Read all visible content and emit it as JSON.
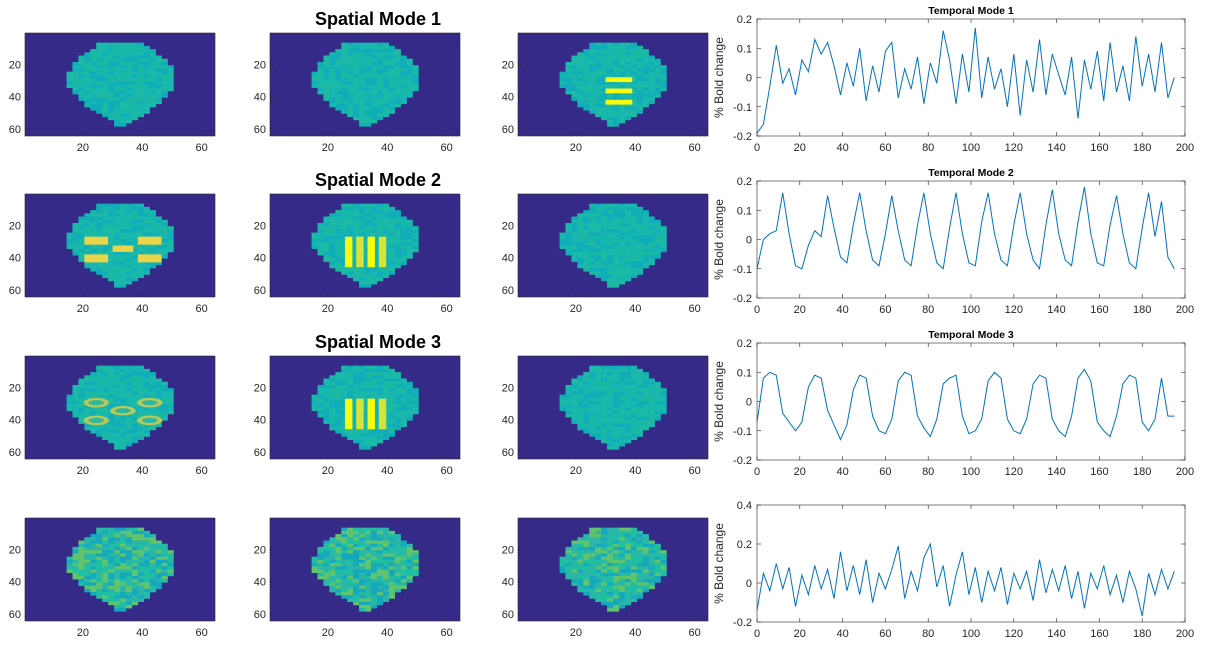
{
  "figure": {
    "colors": {
      "background": "#352a87",
      "brain": "#12b3b3",
      "activation": "#f9fb0e",
      "line": "#0072bd",
      "axis": "#262626"
    },
    "image_ticks": {
      "x": [
        "20",
        "40",
        "60"
      ],
      "y": [
        "20",
        "40",
        "60"
      ]
    },
    "rows": [
      {
        "spatial_title": "Spatial Mode 1",
        "temporal_title": "Temporal Mode 1",
        "ylabel": "% Bold change",
        "image_patterns": [
          "brain",
          "brain",
          "horizontal-bars"
        ]
      },
      {
        "spatial_title": "Spatial Mode 2",
        "temporal_title": "Temporal Mode 2",
        "ylabel": "% Bold change",
        "image_patterns": [
          "squares",
          "vertical-stripes",
          "brain"
        ]
      },
      {
        "spatial_title": "Spatial Mode 3",
        "temporal_title": "Temporal Mode 3",
        "ylabel": "% Bold change",
        "image_patterns": [
          "ellipses",
          "vertical-stripes",
          "brain"
        ]
      },
      {
        "spatial_title": "",
        "temporal_title": "",
        "ylabel": "% Bold change",
        "image_patterns": [
          "noisy-brain",
          "noisy-brain",
          "noisy-brain"
        ]
      }
    ]
  },
  "chart_data": [
    {
      "type": "line",
      "title": "Temporal Mode 1",
      "xlabel": "",
      "ylabel": "% Bold change",
      "xlim": [
        0,
        200
      ],
      "ylim": [
        -0.2,
        0.2
      ],
      "xticks": [
        "0",
        "20",
        "40",
        "60",
        "80",
        "100",
        "120",
        "140",
        "160",
        "180",
        "200"
      ],
      "yticks": [
        "-0.2",
        "-0.1",
        "0",
        "0.1",
        "0.2"
      ],
      "x": [
        0,
        3,
        6,
        9,
        12,
        15,
        18,
        21,
        24,
        27,
        30,
        33,
        36,
        39,
        42,
        45,
        48,
        51,
        54,
        57,
        60,
        63,
        66,
        69,
        72,
        75,
        78,
        81,
        84,
        87,
        90,
        93,
        96,
        99,
        102,
        105,
        108,
        111,
        114,
        117,
        120,
        123,
        126,
        129,
        132,
        135,
        138,
        141,
        144,
        147,
        150,
        153,
        156,
        159,
        162,
        165,
        168,
        171,
        174,
        177,
        180,
        183,
        186,
        189,
        192,
        195
      ],
      "y": [
        -0.19,
        -0.16,
        -0.03,
        0.11,
        -0.02,
        0.03,
        -0.06,
        0.06,
        0.02,
        0.13,
        0.08,
        0.12,
        0.04,
        -0.06,
        0.05,
        -0.03,
        0.1,
        -0.08,
        0.04,
        -0.05,
        0.09,
        0.12,
        -0.07,
        0.03,
        -0.04,
        0.07,
        -0.09,
        0.05,
        -0.02,
        0.16,
        0.06,
        -0.09,
        0.08,
        -0.05,
        0.17,
        -0.07,
        0.07,
        -0.04,
        0.03,
        -0.1,
        0.08,
        -0.13,
        0.06,
        -0.05,
        0.13,
        -0.06,
        0.08,
        0.01,
        -0.06,
        0.07,
        -0.14,
        0.06,
        -0.04,
        0.09,
        -0.08,
        0.12,
        -0.05,
        0.04,
        -0.08,
        0.14,
        -0.03,
        0.08,
        -0.05,
        0.12,
        -0.07,
        0.0
      ]
    },
    {
      "type": "line",
      "title": "Temporal Mode 2",
      "xlabel": "",
      "ylabel": "% Bold change",
      "xlim": [
        0,
        200
      ],
      "ylim": [
        -0.2,
        0.2
      ],
      "xticks": [
        "0",
        "20",
        "40",
        "60",
        "80",
        "100",
        "120",
        "140",
        "160",
        "180",
        "200"
      ],
      "yticks": [
        "-0.2",
        "-0.1",
        "0",
        "0.1",
        "0.2"
      ],
      "x": [
        0,
        3,
        6,
        9,
        12,
        15,
        18,
        21,
        24,
        27,
        30,
        33,
        36,
        39,
        42,
        45,
        48,
        51,
        54,
        57,
        60,
        63,
        66,
        69,
        72,
        75,
        78,
        81,
        84,
        87,
        90,
        93,
        96,
        99,
        102,
        105,
        108,
        111,
        114,
        117,
        120,
        123,
        126,
        129,
        132,
        135,
        138,
        141,
        144,
        147,
        150,
        153,
        156,
        159,
        162,
        165,
        168,
        171,
        174,
        177,
        180,
        183,
        186,
        189,
        192,
        195
      ],
      "y": [
        -0.1,
        0.0,
        0.02,
        0.03,
        0.16,
        0.02,
        -0.09,
        -0.1,
        -0.02,
        0.03,
        0.01,
        0.15,
        0.04,
        -0.06,
        -0.08,
        0.05,
        0.16,
        0.03,
        -0.07,
        -0.09,
        0.02,
        0.15,
        0.03,
        -0.07,
        -0.09,
        0.05,
        0.16,
        0.02,
        -0.08,
        -0.1,
        0.04,
        0.16,
        0.02,
        -0.08,
        -0.09,
        0.06,
        0.16,
        0.02,
        -0.07,
        -0.09,
        0.05,
        0.16,
        0.02,
        -0.07,
        -0.1,
        0.05,
        0.17,
        0.02,
        -0.07,
        -0.09,
        0.06,
        0.18,
        0.02,
        -0.08,
        -0.09,
        0.05,
        0.15,
        0.02,
        -0.08,
        -0.1,
        0.04,
        0.16,
        0.01,
        0.13,
        -0.06,
        -0.1
      ]
    },
    {
      "type": "line",
      "title": "Temporal Mode 3",
      "xlabel": "",
      "ylabel": "% Bold change",
      "xlim": [
        0,
        200
      ],
      "ylim": [
        -0.2,
        0.2
      ],
      "xticks": [
        "0",
        "20",
        "40",
        "60",
        "80",
        "100",
        "120",
        "140",
        "160",
        "180",
        "200"
      ],
      "yticks": [
        "-0.2",
        "-0.1",
        "0",
        "0.1",
        "0.2"
      ],
      "x": [
        0,
        3,
        6,
        9,
        12,
        15,
        18,
        21,
        24,
        27,
        30,
        33,
        36,
        39,
        42,
        45,
        48,
        51,
        54,
        57,
        60,
        63,
        66,
        69,
        72,
        75,
        78,
        81,
        84,
        87,
        90,
        93,
        96,
        99,
        102,
        105,
        108,
        111,
        114,
        117,
        120,
        123,
        126,
        129,
        132,
        135,
        138,
        141,
        144,
        147,
        150,
        153,
        156,
        159,
        162,
        165,
        168,
        171,
        174,
        177,
        180,
        183,
        186,
        189,
        192,
        195
      ],
      "y": [
        -0.07,
        0.08,
        0.1,
        0.09,
        -0.04,
        -0.07,
        -0.1,
        -0.07,
        0.05,
        0.09,
        0.08,
        -0.03,
        -0.08,
        -0.13,
        -0.08,
        0.04,
        0.09,
        0.08,
        -0.05,
        -0.1,
        -0.11,
        -0.06,
        0.07,
        0.1,
        0.09,
        -0.05,
        -0.09,
        -0.12,
        -0.06,
        0.06,
        0.08,
        0.09,
        -0.05,
        -0.11,
        -0.1,
        -0.06,
        0.07,
        0.1,
        0.08,
        -0.06,
        -0.1,
        -0.11,
        -0.06,
        0.06,
        0.09,
        0.08,
        -0.06,
        -0.1,
        -0.12,
        -0.05,
        0.08,
        0.11,
        0.07,
        -0.07,
        -0.1,
        -0.12,
        -0.05,
        0.06,
        0.09,
        0.08,
        -0.07,
        -0.1,
        -0.06,
        0.08,
        -0.05,
        -0.05
      ]
    },
    {
      "type": "line",
      "title": "",
      "xlabel": "",
      "ylabel": "% Bold change",
      "xlim": [
        0,
        200
      ],
      "ylim": [
        -0.2,
        0.4
      ],
      "xticks": [
        "0",
        "20",
        "40",
        "60",
        "80",
        "100",
        "120",
        "140",
        "160",
        "180",
        "200"
      ],
      "yticks": [
        "-0.2",
        "0",
        "0.2",
        "0.4"
      ],
      "x": [
        0,
        3,
        6,
        9,
        12,
        15,
        18,
        21,
        24,
        27,
        30,
        33,
        36,
        39,
        42,
        45,
        48,
        51,
        54,
        57,
        60,
        63,
        66,
        69,
        72,
        75,
        78,
        81,
        84,
        87,
        90,
        93,
        96,
        99,
        102,
        105,
        108,
        111,
        114,
        117,
        120,
        123,
        126,
        129,
        132,
        135,
        138,
        141,
        144,
        147,
        150,
        153,
        156,
        159,
        162,
        165,
        168,
        171,
        174,
        177,
        180,
        183,
        186,
        189,
        192,
        195
      ],
      "y": [
        -0.14,
        0.05,
        -0.04,
        0.1,
        -0.03,
        0.08,
        -0.12,
        0.04,
        -0.06,
        0.09,
        -0.03,
        0.07,
        -0.08,
        0.16,
        -0.04,
        0.09,
        -0.06,
        0.12,
        -0.1,
        0.05,
        -0.03,
        0.07,
        0.19,
        -0.08,
        0.06,
        -0.04,
        0.13,
        0.2,
        -0.02,
        0.09,
        -0.12,
        0.04,
        0.16,
        -0.06,
        0.08,
        -0.1,
        0.06,
        -0.04,
        0.08,
        -0.11,
        0.05,
        -0.03,
        0.06,
        -0.09,
        0.12,
        -0.05,
        0.07,
        -0.04,
        0.09,
        -0.08,
        0.06,
        -0.13,
        0.05,
        -0.03,
        0.09,
        -0.06,
        0.04,
        -0.1,
        0.06,
        -0.03,
        -0.17,
        0.05,
        -0.06,
        0.07,
        -0.03,
        0.06
      ]
    }
  ]
}
